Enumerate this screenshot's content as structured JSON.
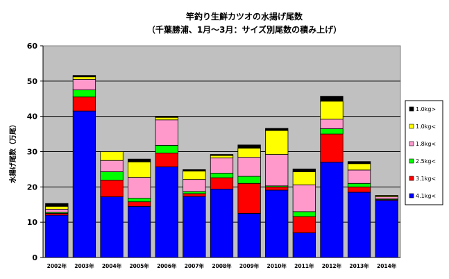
{
  "chart_data": {
    "type": "bar",
    "stacked": true,
    "title": "竿釣り生鮮カツオの水揚げ尾数",
    "subtitle": "（千葉勝浦、1月～3月：サイズ別尾数の積み上げ）",
    "ylabel": "水揚げ尾数（万尾）",
    "xlabel": "",
    "ylim": [
      0,
      60
    ],
    "yticks": [
      "0",
      "10",
      "20",
      "30",
      "40",
      "50",
      "60"
    ],
    "grid": true,
    "legend_position": "right",
    "plot_background": "#c0c0c0",
    "categories": [
      "2002年",
      "2003年",
      "2004年",
      "2005年",
      "2006年",
      "2007年",
      "2008年",
      "2009年",
      "2010年",
      "2011年",
      "2012年",
      "2013年",
      "2014年"
    ],
    "series": [
      {
        "name": "4.1kg<",
        "color": "#0000ff",
        "values": [
          12.0,
          41.5,
          17.2,
          14.5,
          25.7,
          17.3,
          19.4,
          12.5,
          19.1,
          7.0,
          27.0,
          18.5,
          16.2
        ]
      },
      {
        "name": "3.1kg<",
        "color": "#ff0000",
        "values": [
          0.5,
          4.0,
          4.7,
          1.3,
          3.9,
          0.8,
          3.2,
          8.5,
          0.9,
          4.6,
          8.0,
          1.5,
          0.2
        ]
      },
      {
        "name": "2.5kg<",
        "color": "#00ff00",
        "values": [
          0.3,
          2.0,
          2.4,
          1.0,
          2.2,
          0.6,
          1.3,
          2.0,
          0.3,
          1.4,
          1.5,
          1.0,
          0.2
        ]
      },
      {
        "name": "1.8kg<",
        "color": "#ff99cc",
        "values": [
          0.9,
          3.0,
          3.2,
          5.9,
          7.2,
          3.4,
          4.3,
          5.4,
          8.9,
          7.6,
          2.7,
          3.8,
          0.6
        ]
      },
      {
        "name": "1.0kg<",
        "color": "#ffff00",
        "values": [
          0.8,
          0.7,
          2.5,
          4.4,
          0.7,
          2.4,
          0.7,
          2.6,
          6.8,
          3.7,
          5.1,
          1.8,
          0.3
        ]
      },
      {
        "name": "1.0kg>",
        "color": "#000000",
        "values": [
          0.8,
          0.4,
          0.0,
          0.8,
          0.3,
          0.4,
          0.3,
          0.9,
          0.6,
          0.8,
          1.4,
          0.6,
          0.1
        ]
      }
    ],
    "legend_order": [
      "1.0kg>",
      "1.0kg<",
      "1.8kg<",
      "2.5kg<",
      "3.1kg<",
      "4.1kg<"
    ]
  }
}
